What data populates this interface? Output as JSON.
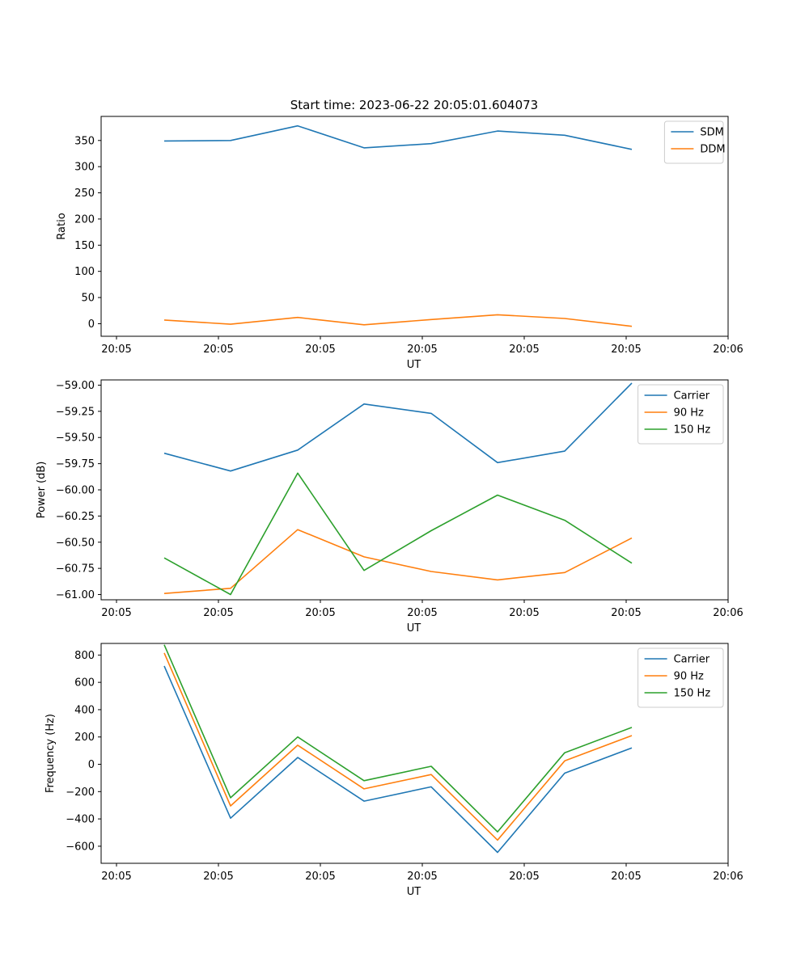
{
  "figure_title": "Start time: 2023-06-22 20:05:01.604073",
  "colors": {
    "c0": "#1f77b4",
    "c1": "#ff7f0e",
    "c2": "#2ca02c",
    "frame": "#000000",
    "legend_border": "#cccccc"
  },
  "chart_data": [
    {
      "type": "line",
      "title": "Start time: 2023-06-22 20:05:01.604073",
      "xlabel": "UT",
      "ylabel": "Ratio",
      "x_tick_labels": [
        "20:05",
        "20:05",
        "20:05",
        "20:05",
        "20:05",
        "20:05",
        "20:05",
        "20:05",
        "20:06"
      ],
      "y_ticks": [
        0,
        50,
        100,
        150,
        200,
        250,
        300,
        350
      ],
      "y_tick_labels": [
        "0",
        "50",
        "100",
        "150",
        "200",
        "250",
        "300",
        "350"
      ],
      "ylim": [
        -24,
        396
      ],
      "legend_position": "upper right",
      "grid": false,
      "series": [
        {
          "name": "SDM",
          "color": "#1f77b4",
          "values": [
            349,
            350,
            378,
            336,
            344,
            368,
            360,
            333
          ]
        },
        {
          "name": "DDM",
          "color": "#ff7f0e",
          "values": [
            7,
            -1,
            12,
            -2,
            8,
            17,
            10,
            -5
          ]
        }
      ]
    },
    {
      "type": "line",
      "xlabel": "UT",
      "ylabel": "Power (dB)",
      "x_tick_labels": [
        "20:05",
        "20:05",
        "20:05",
        "20:05",
        "20:05",
        "20:05",
        "20:05",
        "20:05",
        "20:06"
      ],
      "y_ticks": [
        -61.0,
        -60.75,
        -60.5,
        -60.25,
        -60.0,
        -59.75,
        -59.5,
        -59.25,
        -59.0
      ],
      "y_tick_labels": [
        "−61.00",
        "−60.75",
        "−60.50",
        "−60.25",
        "−60.00",
        "−59.75",
        "−59.50",
        "−59.25",
        "−59.00"
      ],
      "ylim": [
        -61.05,
        -58.95
      ],
      "legend_position": "upper right",
      "grid": false,
      "series": [
        {
          "name": "Carrier",
          "color": "#1f77b4",
          "values": [
            -59.65,
            -59.82,
            -59.62,
            -59.18,
            -59.27,
            -59.74,
            -59.63,
            -58.98
          ]
        },
        {
          "name": "90 Hz",
          "color": "#ff7f0e",
          "values": [
            -60.99,
            -60.94,
            -60.38,
            -60.64,
            -60.78,
            -60.86,
            -60.79,
            -60.46
          ]
        },
        {
          "name": "150 Hz",
          "color": "#2ca02c",
          "values": [
            -60.65,
            -61.0,
            -59.84,
            -60.77,
            -60.39,
            -60.05,
            -60.29,
            -60.7
          ]
        }
      ]
    },
    {
      "type": "line",
      "xlabel": "UT",
      "ylabel": "Frequency (Hz)",
      "x_tick_labels": [
        "20:05",
        "20:05",
        "20:05",
        "20:05",
        "20:05",
        "20:05",
        "20:05",
        "20:05",
        "20:06"
      ],
      "y_ticks": [
        -600,
        -400,
        -200,
        0,
        200,
        400,
        600,
        800
      ],
      "y_tick_labels": [
        "−600",
        "−400",
        "−200",
        "0",
        "200",
        "400",
        "600",
        "800"
      ],
      "ylim": [
        -725,
        885
      ],
      "legend_position": "upper right",
      "grid": false,
      "series": [
        {
          "name": "Carrier",
          "color": "#1f77b4",
          "values": [
            720,
            -395,
            50,
            -270,
            -165,
            -645,
            -65,
            120
          ]
        },
        {
          "name": "90 Hz",
          "color": "#ff7f0e",
          "values": [
            815,
            -305,
            140,
            -180,
            -75,
            -555,
            25,
            210
          ]
        },
        {
          "name": "150 Hz",
          "color": "#2ca02c",
          "values": [
            875,
            -245,
            200,
            -120,
            -15,
            -495,
            85,
            270
          ]
        }
      ]
    }
  ]
}
